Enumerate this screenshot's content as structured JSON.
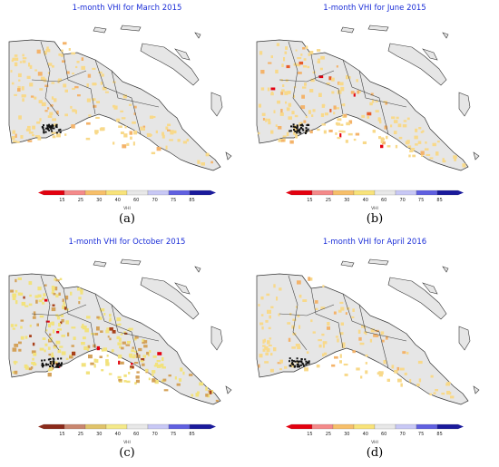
{
  "panels": [
    {
      "title": "1-month VHI for March 2015",
      "letter": "(a)",
      "severity": 0.25
    },
    {
      "title": "1-month VHI for June 2015",
      "letter": "(b)",
      "severity": 0.45
    },
    {
      "title": "1-month VHI for October 2015",
      "letter": "(c)",
      "severity": 0.75
    },
    {
      "title": "1-month VHI for April 2016",
      "letter": "(d)",
      "severity": 0.2
    }
  ],
  "colorbar": {
    "label": "VHI",
    "ticks": [
      "15",
      "25",
      "30",
      "40",
      "60",
      "70",
      "75",
      "85"
    ],
    "colors": [
      "#e4000f",
      "#f48a8a",
      "#f7bf6a",
      "#f8e37a",
      "#e8e8e8",
      "#c8c8f5",
      "#6060e0",
      "#1a1a9c"
    ],
    "colors_c": [
      "#8b2a1a",
      "#c9866f",
      "#e0c36a",
      "#f4e98a",
      "#e8e8e8",
      "#c8c8f5",
      "#6060e0",
      "#1a1a9c"
    ]
  }
}
